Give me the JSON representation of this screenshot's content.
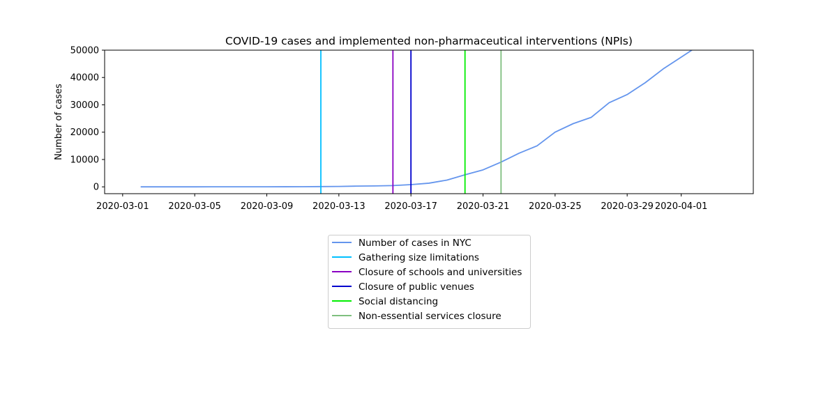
{
  "chart_data": {
    "type": "line",
    "title": "COVID-19 cases and implemented non-pharmaceutical interventions (NPIs)",
    "xlabel": "",
    "ylabel": "Number of cases",
    "xlim": [
      "2020-02-29",
      "2020-04-05"
    ],
    "ylim": [
      -2500,
      50000
    ],
    "x_ticks": [
      "2020-03-01",
      "2020-03-05",
      "2020-03-09",
      "2020-03-13",
      "2020-03-17",
      "2020-03-21",
      "2020-03-25",
      "2020-03-29",
      "2020-04-01"
    ],
    "y_ticks": [
      0,
      10000,
      20000,
      30000,
      40000,
      50000
    ],
    "grid": false,
    "legend_position": "below",
    "series": [
      {
        "name": "Number of cases in NYC",
        "color": "#6495ED",
        "x": [
          "2020-03-02",
          "2020-03-03",
          "2020-03-04",
          "2020-03-05",
          "2020-03-06",
          "2020-03-07",
          "2020-03-08",
          "2020-03-09",
          "2020-03-10",
          "2020-03-11",
          "2020-03-12",
          "2020-03-13",
          "2020-03-14",
          "2020-03-15",
          "2020-03-16",
          "2020-03-17",
          "2020-03-18",
          "2020-03-19",
          "2020-03-20",
          "2020-03-21",
          "2020-03-22",
          "2020-03-23",
          "2020-03-24",
          "2020-03-25",
          "2020-03-26",
          "2020-03-27",
          "2020-03-28",
          "2020-03-29",
          "2020-03-30",
          "2020-03-31",
          "2020-04-01",
          "2020-04-02"
        ],
        "y": [
          1,
          1,
          2,
          4,
          11,
          12,
          14,
          25,
          36,
          53,
          95,
          154,
          269,
          329,
          463,
          814,
          1339,
          2469,
          4408,
          6211,
          9045,
          12305,
          15000,
          20011,
          23112,
          25398,
          30766,
          33768,
          38087,
          43139,
          47439,
          51810
        ]
      }
    ],
    "vlines": [
      {
        "name": "Gathering size limitations",
        "x": "2020-03-12",
        "color": "#00BFFF"
      },
      {
        "name": "Closure of schools and universities",
        "x": "2020-03-16",
        "color": "#8A00C2"
      },
      {
        "name": "Closure of public venues",
        "x": "2020-03-17",
        "color": "#0000CD"
      },
      {
        "name": "Social distancing",
        "x": "2020-03-20",
        "color": "#00EE00"
      },
      {
        "name": "Non-essential services closure",
        "x": "2020-03-22",
        "color": "#7FBF7F"
      }
    ]
  }
}
